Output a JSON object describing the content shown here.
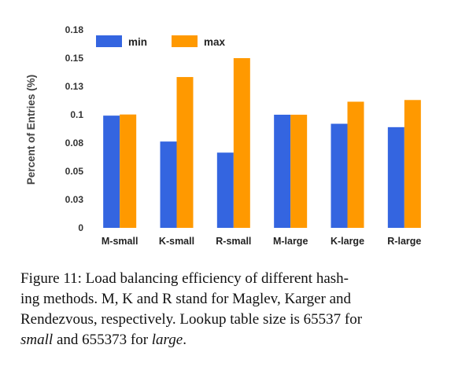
{
  "chart_data": {
    "type": "bar",
    "categories": [
      "M-small",
      "K-small",
      "R-small",
      "M-large",
      "K-large",
      "R-large"
    ],
    "series": [
      {
        "name": "min",
        "color": "#3465e0",
        "values": [
          0.0992,
          0.0763,
          0.0665,
          0.1,
          0.092,
          0.089
        ]
      },
      {
        "name": "max",
        "color": "#ff9900",
        "values": [
          0.1002,
          0.1333,
          0.15,
          0.1,
          0.1115,
          0.113
        ]
      }
    ],
    "ylabel": "Percent of Entries (%)",
    "yticks": [
      "0",
      "0.03",
      "0.05",
      "0.08",
      "0.1",
      "0.13",
      "0.15",
      "0.18"
    ],
    "ytick_values": [
      0,
      0.025,
      0.05,
      0.075,
      0.1,
      0.125,
      0.15,
      0.175
    ],
    "ylim": [
      0,
      0.175
    ],
    "grid": false,
    "legend_position": "top-left"
  },
  "caption": {
    "line1": "Figure 11: Load balancing efficiency of different hash-",
    "line2": "ing methods. M, K and R stand for Maglev, Karger and",
    "line3": "Rendezvous, respectively. Lookup table size is 65537 for",
    "small_word": "small",
    "and_text": " and 655373 for ",
    "large_word": "large",
    "period": "."
  }
}
